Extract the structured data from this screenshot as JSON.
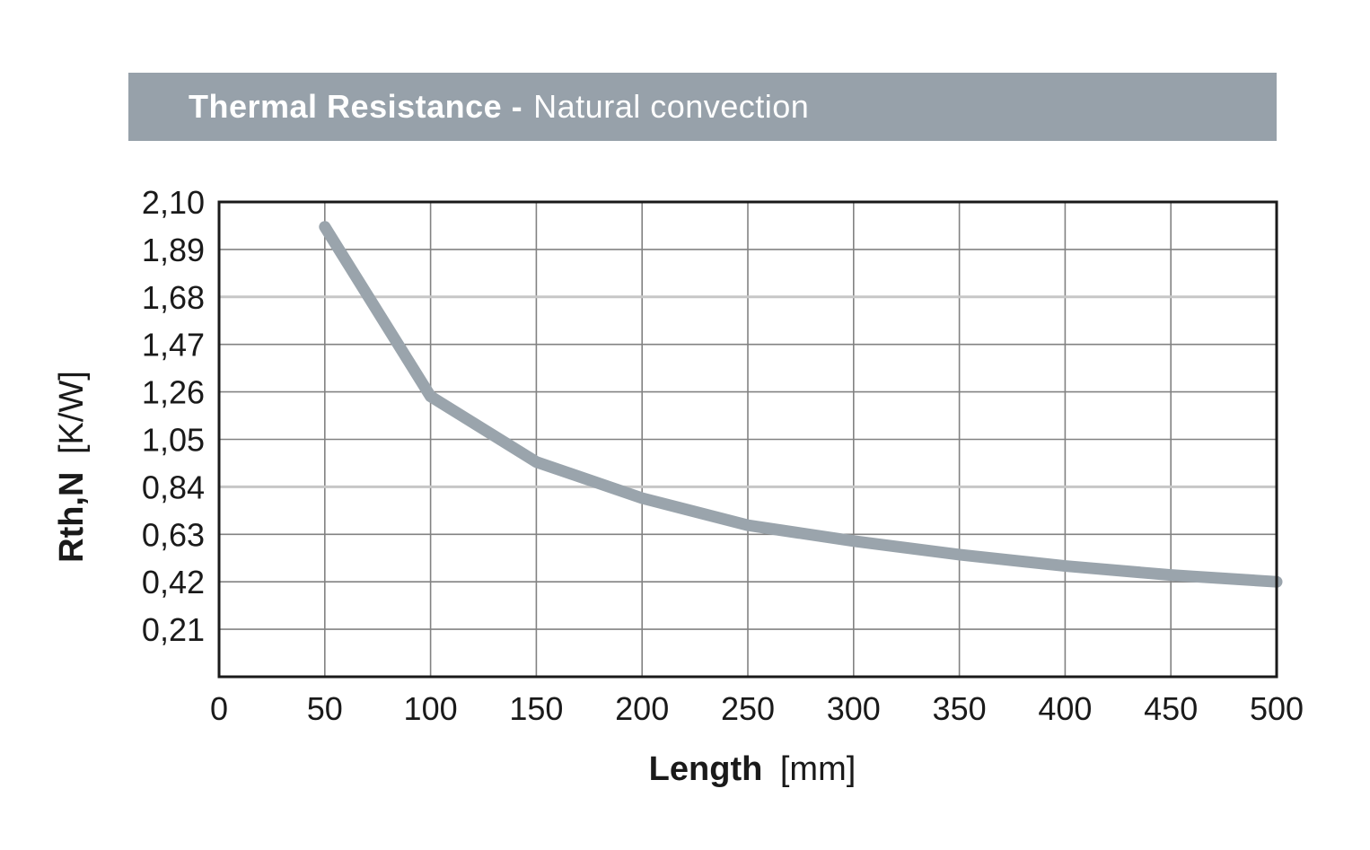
{
  "header": {
    "title_bold": "Thermal Resistance -",
    "title_regular": "Natural convection",
    "background_color": "#97A1AA",
    "text_color": "#FFFFFF"
  },
  "chart_data": {
    "type": "line",
    "title": "Thermal Resistance - Natural convection",
    "xlabel_bold": "Length",
    "xlabel_unit": "[mm]",
    "ylabel_bold": "Rth,N",
    "ylabel_unit": "[K/W]",
    "x": [
      50,
      100,
      150,
      200,
      250,
      300,
      350,
      400,
      450,
      500
    ],
    "y": [
      1.99,
      1.24,
      0.95,
      0.79,
      0.67,
      0.6,
      0.54,
      0.49,
      0.45,
      0.42
    ],
    "xlim": [
      0,
      500
    ],
    "ylim": [
      0,
      2.1
    ],
    "x_tick_step": 50,
    "y_tick_step": 0.21,
    "x_tick_labels": [
      "0",
      "50",
      "100",
      "150",
      "200",
      "250",
      "300",
      "350",
      "400",
      "450",
      "500"
    ],
    "y_tick_labels": [
      "2,10",
      "1,89",
      "1,68",
      "1,47",
      "1,26",
      "1,05",
      "0,84",
      "0,63",
      "0,42",
      "0,21"
    ],
    "grid": true,
    "legend": "none",
    "highlight_gridlines_y": [
      1.68,
      0.84
    ],
    "line_color": "#9AA4AC",
    "line_width": 13,
    "grid_color": "#828282",
    "highlight_grid_color": "#C7C7C7",
    "frame_color": "#1A1A1A"
  }
}
